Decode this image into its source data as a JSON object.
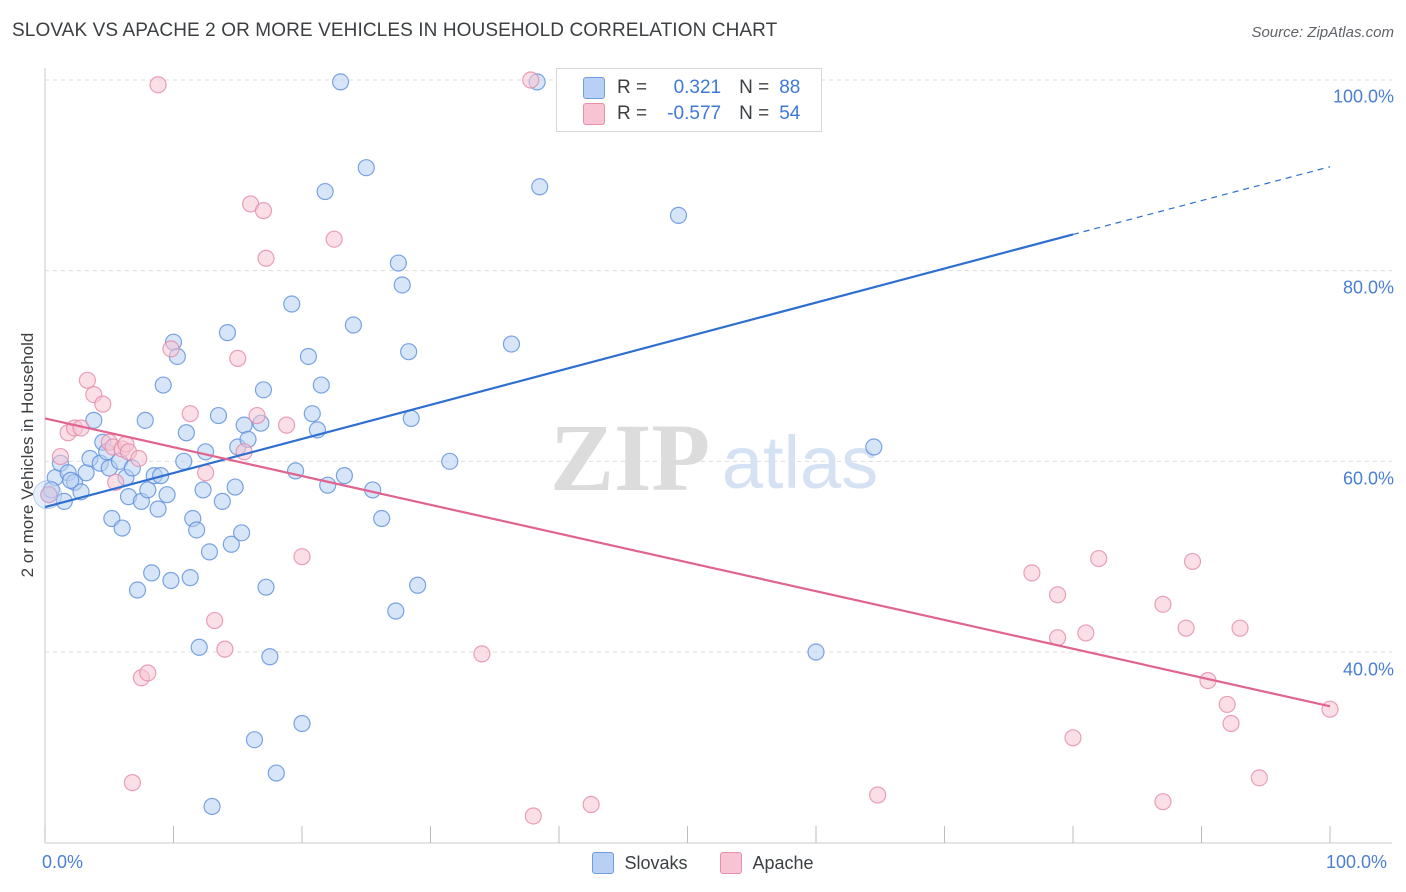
{
  "title": "SLOVAK VS APACHE 2 OR MORE VEHICLES IN HOUSEHOLD CORRELATION CHART",
  "source": "Source: ZipAtlas.com",
  "watermark": {
    "zip": "ZIP",
    "atlas": "atlas"
  },
  "stats": {
    "r_label": "R =",
    "n_label": "N =",
    "slovaks": {
      "r": "0.321",
      "n": "88"
    },
    "apache": {
      "r": "-0.577",
      "n": "54"
    }
  },
  "legend": {
    "slovaks": "Slovaks",
    "apache": "Apache"
  },
  "colors": {
    "slovaks_fill": "#b7d0f3",
    "slovaks_stroke": "#5b8fdc",
    "slovaks_line": "#2e6fcf",
    "apache_fill": "#f8c4d4",
    "apache_stroke": "#e48aa7",
    "apache_line": "#e0648f",
    "tick_text": "#4a7fd4",
    "grid": "#dddddd"
  },
  "chart_data": {
    "type": "scatter",
    "title": "SLOVAK VS APACHE 2 OR MORE VEHICLES IN HOUSEHOLD CORRELATION CHART",
    "xlabel": "",
    "ylabel": "2 or more Vehicles in Household",
    "xlim": [
      0,
      100
    ],
    "ylim": [
      20,
      101
    ],
    "x_tick_labels": [
      "0.0%",
      "100.0%"
    ],
    "y_ticks": [
      40,
      60,
      80,
      100
    ],
    "y_tick_labels": [
      "40.0%",
      "60.0%",
      "80.0%",
      "100.0%"
    ],
    "grid": true,
    "legend_position": "bottom",
    "series": [
      {
        "name": "Slovaks",
        "r": 0.321,
        "n": 88,
        "trend": {
          "x0": 0,
          "y0": 55.2,
          "x1": 80,
          "y1": 83.8,
          "dashed_to_x": 100,
          "dashed_to_y": 90.9
        },
        "points": [
          [
            0.3,
            56.5
          ],
          [
            0.8,
            58.3
          ],
          [
            1.2,
            59.8
          ],
          [
            1.5,
            55.8
          ],
          [
            1.8,
            58.8
          ],
          [
            2.3,
            57.8
          ],
          [
            2.8,
            56.8
          ],
          [
            3.2,
            58.8
          ],
          [
            3.5,
            60.3
          ],
          [
            3.8,
            64.3
          ],
          [
            4.3,
            59.8
          ],
          [
            4.5,
            62.0
          ],
          [
            4.8,
            61.0
          ],
          [
            5.0,
            59.3
          ],
          [
            5.2,
            54.0
          ],
          [
            5.8,
            60.0
          ],
          [
            6.0,
            53.0
          ],
          [
            6.3,
            58.3
          ],
          [
            6.5,
            56.3
          ],
          [
            6.8,
            59.3
          ],
          [
            7.2,
            46.5
          ],
          [
            7.5,
            55.8
          ],
          [
            7.8,
            64.3
          ],
          [
            8.0,
            57.0
          ],
          [
            8.3,
            48.3
          ],
          [
            8.5,
            58.5
          ],
          [
            8.8,
            55.0
          ],
          [
            9.2,
            68.0
          ],
          [
            9.5,
            56.5
          ],
          [
            9.8,
            47.5
          ],
          [
            10.0,
            72.5
          ],
          [
            10.3,
            71.0
          ],
          [
            10.8,
            60.0
          ],
          [
            11.0,
            63.0
          ],
          [
            11.3,
            47.8
          ],
          [
            11.5,
            54.0
          ],
          [
            11.8,
            52.8
          ],
          [
            12.0,
            40.5
          ],
          [
            12.3,
            57.0
          ],
          [
            12.5,
            61.0
          ],
          [
            12.8,
            50.5
          ],
          [
            13.0,
            23.8
          ],
          [
            13.5,
            64.8
          ],
          [
            13.8,
            55.8
          ],
          [
            14.2,
            73.5
          ],
          [
            14.5,
            51.3
          ],
          [
            14.8,
            57.3
          ],
          [
            15.0,
            61.5
          ],
          [
            15.3,
            52.5
          ],
          [
            15.5,
            63.8
          ],
          [
            15.8,
            62.3
          ],
          [
            16.3,
            30.8
          ],
          [
            16.8,
            64.0
          ],
          [
            17.0,
            67.5
          ],
          [
            17.2,
            46.8
          ],
          [
            17.5,
            39.5
          ],
          [
            18.0,
            27.3
          ],
          [
            19.2,
            76.5
          ],
          [
            19.5,
            59.0
          ],
          [
            20.0,
            32.5
          ],
          [
            20.5,
            71.0
          ],
          [
            20.8,
            65.0
          ],
          [
            21.2,
            63.3
          ],
          [
            21.5,
            68.0
          ],
          [
            21.8,
            88.3
          ],
          [
            23.0,
            99.8
          ],
          [
            23.3,
            58.5
          ],
          [
            24.0,
            74.3
          ],
          [
            25.0,
            90.8
          ],
          [
            25.5,
            57.0
          ],
          [
            26.2,
            54.0
          ],
          [
            27.3,
            44.3
          ],
          [
            27.5,
            80.8
          ],
          [
            27.8,
            78.5
          ],
          [
            28.3,
            71.5
          ],
          [
            28.5,
            64.5
          ],
          [
            29.0,
            47.0
          ],
          [
            31.5,
            60.0
          ],
          [
            36.3,
            72.3
          ],
          [
            38.3,
            99.8
          ],
          [
            38.5,
            88.8
          ],
          [
            49.3,
            85.8
          ],
          [
            60.0,
            40.0
          ],
          [
            64.5,
            61.5
          ],
          [
            0.5,
            57.0
          ],
          [
            2.0,
            58.0
          ],
          [
            9.0,
            58.5
          ],
          [
            22.0,
            57.5
          ]
        ]
      },
      {
        "name": "Apache",
        "r": -0.577,
        "n": 54,
        "trend": {
          "x0": 0,
          "y0": 64.5,
          "x1": 100,
          "y1": 34.3
        },
        "points": [
          [
            0.3,
            56.5
          ],
          [
            1.2,
            60.5
          ],
          [
            1.8,
            63.0
          ],
          [
            2.3,
            63.5
          ],
          [
            2.8,
            63.5
          ],
          [
            3.3,
            68.5
          ],
          [
            3.8,
            67.0
          ],
          [
            4.5,
            66.0
          ],
          [
            5.0,
            62.0
          ],
          [
            5.3,
            61.5
          ],
          [
            5.5,
            57.8
          ],
          [
            6.0,
            61.3
          ],
          [
            6.3,
            61.8
          ],
          [
            6.5,
            61.0
          ],
          [
            6.8,
            26.3
          ],
          [
            7.3,
            60.3
          ],
          [
            7.5,
            37.3
          ],
          [
            8.0,
            37.8
          ],
          [
            8.8,
            99.5
          ],
          [
            9.8,
            71.8
          ],
          [
            11.3,
            65.0
          ],
          [
            12.5,
            58.8
          ],
          [
            13.2,
            43.3
          ],
          [
            14.0,
            40.3
          ],
          [
            15.0,
            70.8
          ],
          [
            15.5,
            61.0
          ],
          [
            16.0,
            87.0
          ],
          [
            16.5,
            64.8
          ],
          [
            17.0,
            86.3
          ],
          [
            17.2,
            81.3
          ],
          [
            18.8,
            63.8
          ],
          [
            20.0,
            50.0
          ],
          [
            22.5,
            83.3
          ],
          [
            34.0,
            39.8
          ],
          [
            37.8,
            100.0
          ],
          [
            38.0,
            22.8
          ],
          [
            42.5,
            24.0
          ],
          [
            64.8,
            25.0
          ],
          [
            76.8,
            48.3
          ],
          [
            78.8,
            46.0
          ],
          [
            78.8,
            41.5
          ],
          [
            80.0,
            31.0
          ],
          [
            81.0,
            42.0
          ],
          [
            82.0,
            49.8
          ],
          [
            87.0,
            45.0
          ],
          [
            87.0,
            24.3
          ],
          [
            88.8,
            42.5
          ],
          [
            89.3,
            49.5
          ],
          [
            90.5,
            37.0
          ],
          [
            92.0,
            34.5
          ],
          [
            92.3,
            32.5
          ],
          [
            93.0,
            42.5
          ],
          [
            94.5,
            26.8
          ],
          [
            100.0,
            34.0
          ]
        ]
      }
    ]
  }
}
